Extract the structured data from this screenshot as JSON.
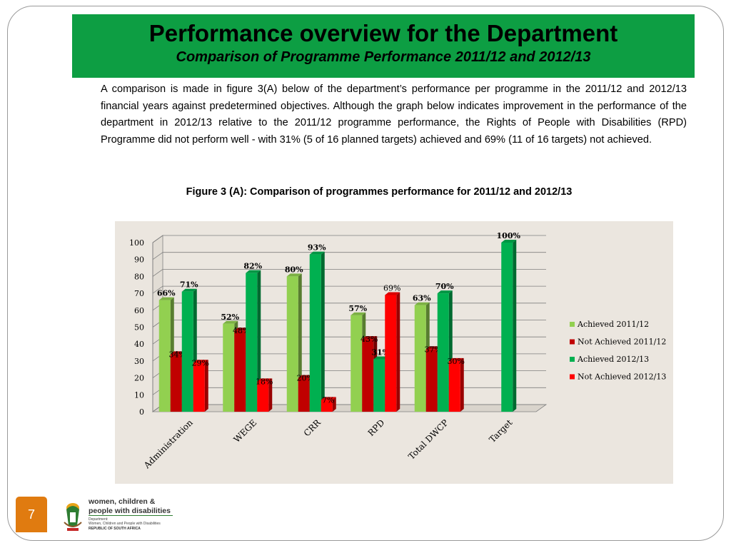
{
  "slide": {
    "title": "Performance overview for the Department",
    "subtitle": "Comparison of Programme Performance 2011/12 and 2012/13",
    "paragraph": "A comparison is made in figure 3(A) below of the department’s performance per programme in the 2011/12 and 2012/13 financial years against predetermined objectives. Although the graph below indicates improvement in the performance of the department in 2012/13 relative to the 2011/12 programme performance, the Rights of People with Disabilities (RPD) Programme did not perform well  -  with 31% (5 of 16 planned targets) achieved and 69% (11 of 16 targets) not achieved.",
    "figure_title": "Figure 3 (A): Comparison of programmes performance for 2011/12 and 2012/13",
    "page_number": "7"
  },
  "footer": {
    "org_line1": "women, children &",
    "org_line2": "people with disabilities",
    "dept_line1": "Department:",
    "dept_line2": "Women, Children and People with Disabilities",
    "dept_line3": "REPUBLIC OF SOUTH AFRICA",
    "logo_icon": "coat-of-arms-icon"
  },
  "chart_data": {
    "type": "bar",
    "title": "",
    "xlabel": "",
    "ylabel": "",
    "ylim": [
      0,
      100
    ],
    "yticks": [
      0,
      10,
      20,
      30,
      40,
      50,
      60,
      70,
      80,
      90,
      100
    ],
    "categories": [
      "Administration",
      "WEGE",
      "CRR",
      "RPD",
      "Total DWCP",
      "Target"
    ],
    "legend_position": "right",
    "grid": true,
    "series": [
      {
        "name": "Achieved 2011/12",
        "color": "#92d050",
        "values": [
          66,
          52,
          80,
          57,
          63,
          null
        ],
        "labels": [
          "66%",
          "52%",
          "80%",
          "57%",
          "63%",
          ""
        ]
      },
      {
        "name": "Not Achieved 2011/12",
        "color": "#c00000",
        "values": [
          34,
          48,
          20,
          43,
          37,
          null
        ],
        "labels": [
          "34%",
          "48%",
          "20%",
          "43%",
          "37%",
          ""
        ]
      },
      {
        "name": "Achieved 2012/13",
        "color": "#00b050",
        "values": [
          71,
          82,
          93,
          31,
          70,
          100
        ],
        "labels": [
          "71%",
          "82%",
          "93%",
          "31%",
          "70%",
          "100%"
        ]
      },
      {
        "name": "Not Achieved 2012/13",
        "color": "#ff0000",
        "values": [
          29,
          18,
          7,
          69,
          30,
          null
        ],
        "labels": [
          "29%",
          "18%",
          "7%",
          "69%",
          "30%",
          ""
        ]
      }
    ]
  }
}
